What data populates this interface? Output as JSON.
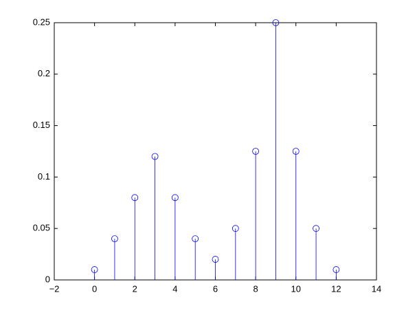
{
  "chart_data": {
    "type": "stem",
    "x": [
      0,
      1,
      2,
      3,
      4,
      5,
      6,
      7,
      8,
      9,
      10,
      11,
      12
    ],
    "values": [
      0.01,
      0.04,
      0.08,
      0.12,
      0.08,
      0.04,
      0.02,
      0.05,
      0.125,
      0.25,
      0.125,
      0.05,
      0.01
    ],
    "color": "#0000ff",
    "xlim": [
      -2,
      14
    ],
    "xticks": [
      {
        "value": -2,
        "label": "−2"
      },
      0,
      2,
      4,
      6,
      8,
      10,
      12,
      14
    ],
    "ylim": [
      0,
      0.25
    ],
    "yticks": [
      0,
      0.05,
      0.1,
      0.15,
      0.2,
      0.25
    ],
    "grid": false
  }
}
